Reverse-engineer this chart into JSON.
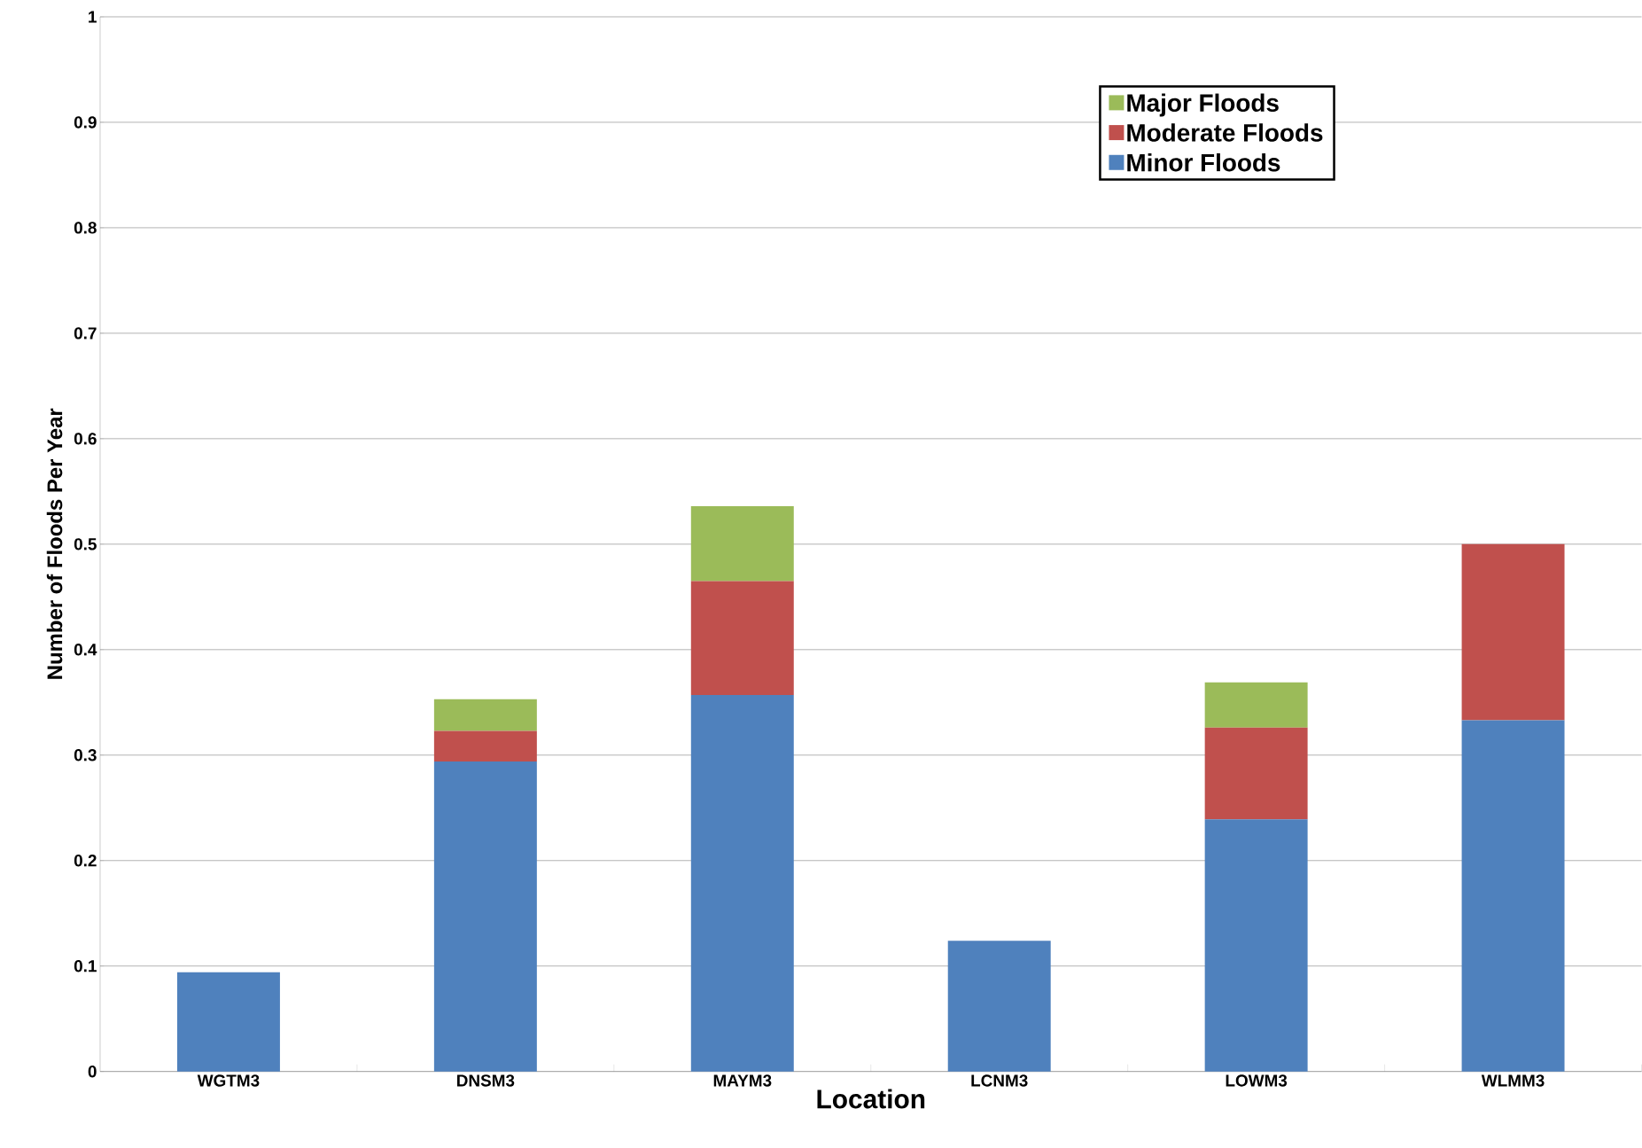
{
  "chart_data": {
    "type": "bar",
    "stacked": true,
    "xlabel": "Location",
    "ylabel": "Number of Floods Per Year",
    "categories": [
      "WGTM3",
      "DNSM3",
      "MAYM3",
      "LCNM3",
      "LOWM3",
      "WLMM3"
    ],
    "series": [
      {
        "name": "Minor Floods",
        "color": "#4f81bd",
        "values": [
          0.094,
          0.294,
          0.357,
          0.124,
          0.239,
          0.333
        ]
      },
      {
        "name": "Moderate Floods",
        "color": "#c0504d",
        "values": [
          null,
          0.029,
          0.108,
          null,
          0.087,
          0.167
        ]
      },
      {
        "name": "Major Floods",
        "color": "#9bbb59",
        "values": [
          null,
          0.03,
          0.071,
          null,
          0.043,
          null
        ]
      }
    ],
    "ylim": [
      0,
      1
    ],
    "yticks": [
      0,
      0.1,
      0.2,
      0.3,
      0.4,
      0.5,
      0.6,
      0.7,
      0.8,
      0.9,
      1
    ],
    "grid": "y",
    "legend": "top right"
  }
}
